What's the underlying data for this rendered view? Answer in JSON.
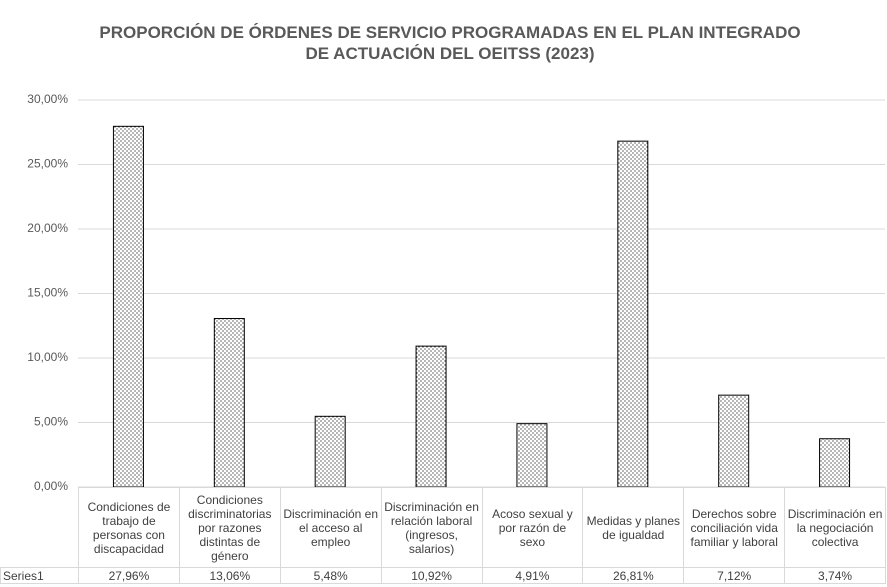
{
  "chart_data": {
    "type": "bar",
    "title": "PROPORCIÓN DE ÓRDENES DE SERVICIO PROGRAMADAS EN EL PLAN INTEGRADO DE ACTUACIÓN DEL OEITSS (2023)",
    "categories": [
      "Condiciones de trabajo de personas con discapacidad",
      "Condiciones discriminatorias por razones distintas de género",
      "Discriminación en el acceso al empleo",
      "Discriminación en relación laboral (ingresos, salarios)",
      "Acoso sexual y por razón de sexo",
      "Medidas y planes de igualdad",
      "Derechos sobre conciliación vida familiar y laboral",
      "Discriminación en la negociación colectiva"
    ],
    "series": [
      {
        "name": "Series1",
        "color": "#000000",
        "values": [
          27.96,
          13.06,
          5.48,
          10.92,
          4.91,
          26.81,
          7.12,
          3.74
        ],
        "value_labels": [
          "27,96%",
          "13,06%",
          "5,48%",
          "10,92%",
          "4,91%",
          "26,81%",
          "7,12%",
          "3,74%"
        ]
      }
    ],
    "ylim": [
      0,
      30
    ],
    "yticks": [
      {
        "value": 0,
        "label": "0,00%"
      },
      {
        "value": 5,
        "label": "5,00%"
      },
      {
        "value": 10,
        "label": "10,00%"
      },
      {
        "value": 15,
        "label": "15,00%"
      },
      {
        "value": 20,
        "label": "20,00%"
      },
      {
        "value": 25,
        "label": "25,00%"
      },
      {
        "value": 30,
        "label": "30,00%"
      }
    ],
    "grid": true
  }
}
